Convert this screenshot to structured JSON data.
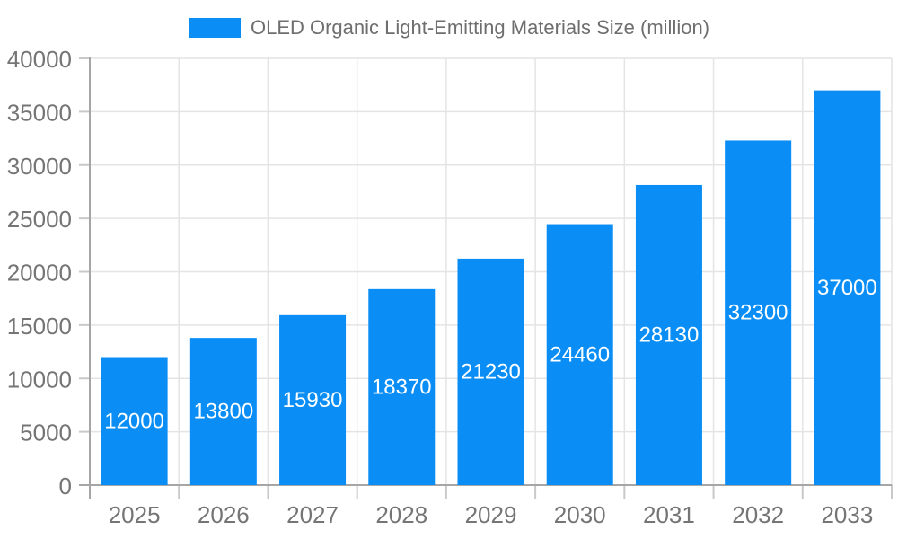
{
  "legend": {
    "label": "OLED Organic Light-Emitting Materials Size (million)"
  },
  "chart_data": {
    "type": "bar",
    "title": "OLED Organic Light-Emitting Materials Size (million)",
    "categories": [
      "2025",
      "2026",
      "2027",
      "2028",
      "2029",
      "2030",
      "2031",
      "2032",
      "2033"
    ],
    "values": [
      12000,
      13800,
      15930,
      18370,
      21230,
      24460,
      28130,
      32300,
      37000
    ],
    "bar_labels": [
      "12000",
      "13800",
      "15930",
      "18370",
      "21230",
      "24460",
      "28130",
      "32300",
      "37000"
    ],
    "xlabel": "",
    "ylabel": "",
    "ylim": [
      0,
      40000
    ],
    "yticks": [
      0,
      5000,
      10000,
      15000,
      20000,
      25000,
      30000,
      35000,
      40000
    ],
    "ytick_labels": [
      "0",
      "5000",
      "10000",
      "15000",
      "20000",
      "25000",
      "30000",
      "35000",
      "40000"
    ],
    "grid": true,
    "legend_position": "top",
    "colors": {
      "bar": "#0a8ef6",
      "bar_value_text": "#ffffff",
      "axis_text": "#757575",
      "legend_text": "#6e6e6e",
      "grid_line": "#e4e4e4",
      "axis_line": "#a6a6a6",
      "tick_line": "#c9c9c9"
    }
  }
}
